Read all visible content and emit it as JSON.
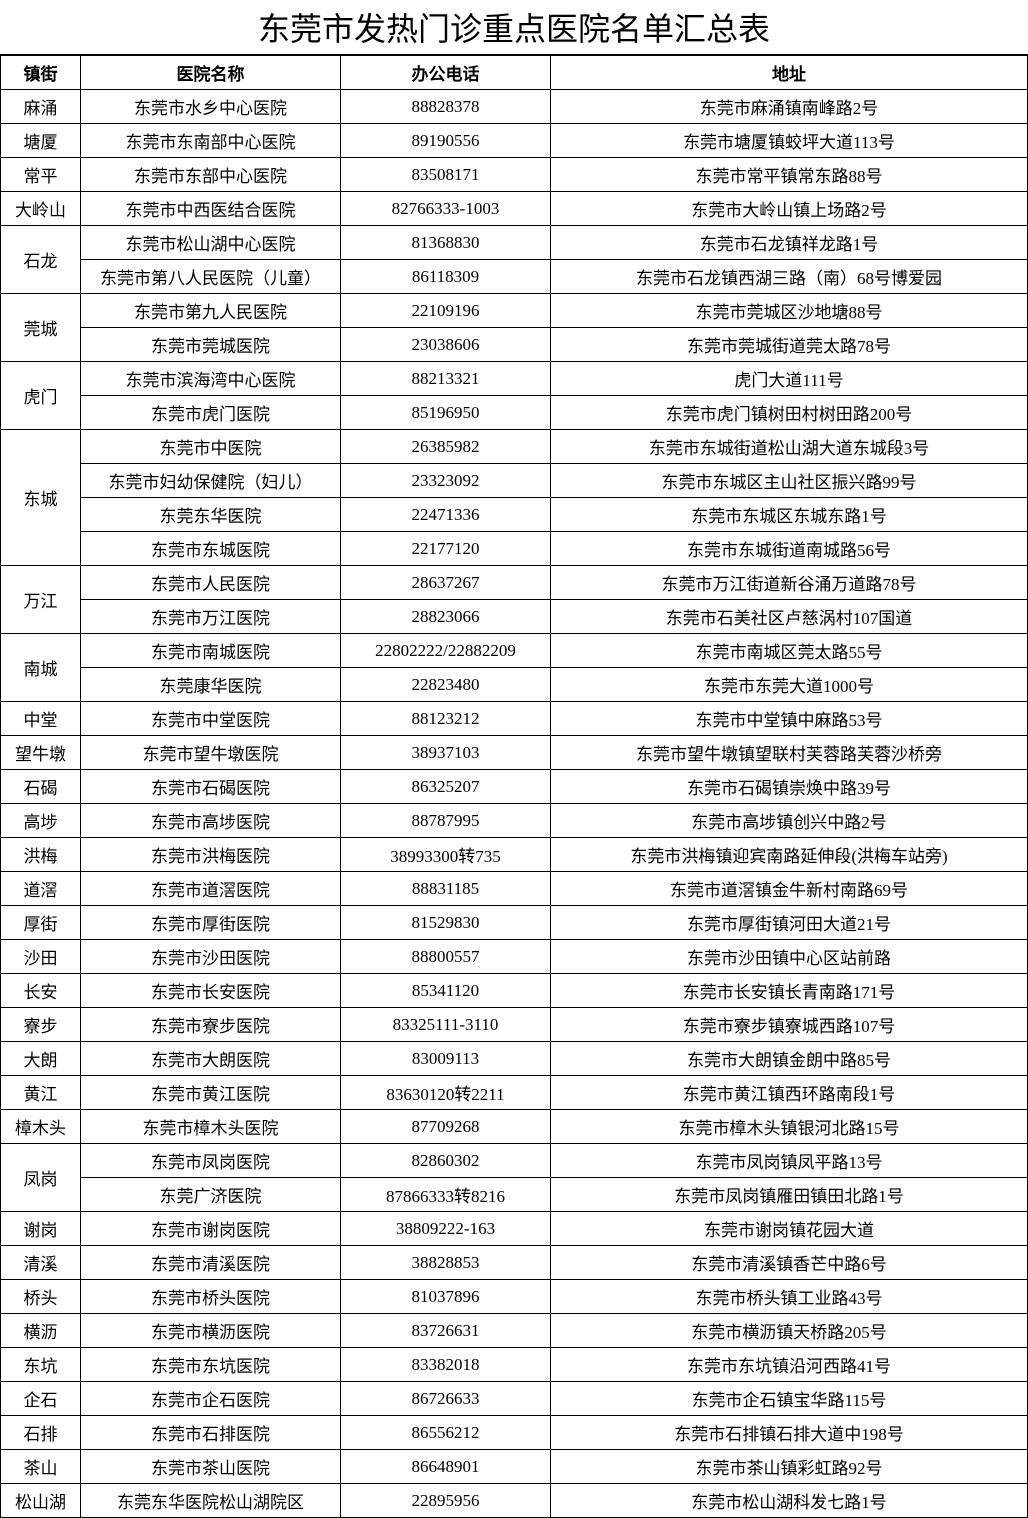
{
  "title": "东莞市发热门诊重点医院名单汇总表",
  "columns": [
    "镇街",
    "医院名称",
    "办公电话",
    "地址"
  ],
  "groups": [
    {
      "town": "麻涌",
      "rows": [
        {
          "hospital": "东莞市水乡中心医院",
          "phone": "88828378",
          "addr": "东莞市麻涌镇南峰路2号"
        }
      ]
    },
    {
      "town": "塘厦",
      "rows": [
        {
          "hospital": "东莞市东南部中心医院",
          "phone": "89190556",
          "addr": "东莞市塘厦镇蛟坪大道113号"
        }
      ]
    },
    {
      "town": "常平",
      "rows": [
        {
          "hospital": "东莞市东部中心医院",
          "phone": "83508171",
          "addr": "东莞市常平镇常东路88号"
        }
      ]
    },
    {
      "town": "大岭山",
      "rows": [
        {
          "hospital": "东莞市中西医结合医院",
          "phone": "82766333-1003",
          "addr": "东莞市大岭山镇上场路2号"
        }
      ]
    },
    {
      "town": "石龙",
      "rows": [
        {
          "hospital": "东莞市松山湖中心医院",
          "phone": "81368830",
          "addr": "东莞市石龙镇祥龙路1号"
        },
        {
          "hospital": "东莞市第八人民医院（儿童）",
          "phone": "86118309",
          "addr": "东莞市石龙镇西湖三路（南）68号博爱园"
        }
      ]
    },
    {
      "town": "莞城",
      "rows": [
        {
          "hospital": "东莞市第九人民医院",
          "phone": "22109196",
          "addr": "东莞市莞城区沙地塘88号"
        },
        {
          "hospital": "东莞市莞城医院",
          "phone": "23038606",
          "addr": "东莞市莞城街道莞太路78号"
        }
      ]
    },
    {
      "town": "虎门",
      "rows": [
        {
          "hospital": "东莞市滨海湾中心医院",
          "phone": "88213321",
          "addr": "虎门大道111号"
        },
        {
          "hospital": "东莞市虎门医院",
          "phone": "85196950",
          "addr": "东莞市虎门镇树田村树田路200号"
        }
      ]
    },
    {
      "town": "东城",
      "rows": [
        {
          "hospital": "东莞市中医院",
          "phone": "26385982",
          "addr": "东莞市东城街道松山湖大道东城段3号"
        },
        {
          "hospital": "东莞市妇幼保健院（妇儿）",
          "phone": "23323092",
          "addr": "东莞市东城区主山社区振兴路99号"
        },
        {
          "hospital": "东莞东华医院",
          "phone": "22471336",
          "addr": "东莞市东城区东城东路1号"
        },
        {
          "hospital": "东莞市东城医院",
          "phone": "22177120",
          "addr": "东莞市东城街道南城路56号"
        }
      ]
    },
    {
      "town": "万江",
      "rows": [
        {
          "hospital": "东莞市人民医院",
          "phone": "28637267",
          "addr": "东莞市万江街道新谷涌万道路78号"
        },
        {
          "hospital": "东莞市万江医院",
          "phone": "28823066",
          "addr": "东莞市石美社区卢慈涡村107国道"
        }
      ]
    },
    {
      "town": "南城",
      "rows": [
        {
          "hospital": "东莞市南城医院",
          "phone": "22802222/22882209",
          "addr": "东莞市南城区莞太路55号"
        },
        {
          "hospital": "东莞康华医院",
          "phone": "22823480",
          "addr": "东莞市东莞大道1000号"
        }
      ]
    },
    {
      "town": "中堂",
      "rows": [
        {
          "hospital": "东莞市中堂医院",
          "phone": "88123212",
          "addr": "东莞市中堂镇中麻路53号"
        }
      ]
    },
    {
      "town": "望牛墩",
      "rows": [
        {
          "hospital": "东莞市望牛墩医院",
          "phone": "38937103",
          "addr": "东莞市望牛墩镇望联村芙蓉路芙蓉沙桥旁"
        }
      ]
    },
    {
      "town": "石碣",
      "rows": [
        {
          "hospital": "东莞市石碣医院",
          "phone": "86325207",
          "addr": "东莞市石碣镇崇焕中路39号"
        }
      ]
    },
    {
      "town": "高埗",
      "rows": [
        {
          "hospital": "东莞市高埗医院",
          "phone": "88787995",
          "addr": "东莞市高埗镇创兴中路2号"
        }
      ]
    },
    {
      "town": "洪梅",
      "rows": [
        {
          "hospital": "东莞市洪梅医院",
          "phone": "38993300转735",
          "addr": "东莞市洪梅镇迎宾南路延伸段(洪梅车站旁)"
        }
      ]
    },
    {
      "town": "道滘",
      "rows": [
        {
          "hospital": "东莞市道滘医院",
          "phone": "88831185",
          "addr": "东莞市道滘镇金牛新村南路69号"
        }
      ]
    },
    {
      "town": "厚街",
      "rows": [
        {
          "hospital": "东莞市厚街医院",
          "phone": "81529830",
          "addr": "东莞市厚街镇河田大道21号"
        }
      ]
    },
    {
      "town": "沙田",
      "rows": [
        {
          "hospital": "东莞市沙田医院",
          "phone": "88800557",
          "addr": "东莞市沙田镇中心区站前路"
        }
      ]
    },
    {
      "town": "长安",
      "rows": [
        {
          "hospital": "东莞市长安医院",
          "phone": "85341120",
          "addr": "东莞市长安镇长青南路171号"
        }
      ]
    },
    {
      "town": "寮步",
      "rows": [
        {
          "hospital": "东莞市寮步医院",
          "phone": "83325111-3110",
          "addr": "东莞市寮步镇寮城西路107号"
        }
      ]
    },
    {
      "town": "大朗",
      "rows": [
        {
          "hospital": "东莞市大朗医院",
          "phone": "83009113",
          "addr": "东莞市大朗镇金朗中路85号"
        }
      ]
    },
    {
      "town": "黄江",
      "rows": [
        {
          "hospital": "东莞市黄江医院",
          "phone": "83630120转2211",
          "addr": "东莞市黄江镇西环路南段1号"
        }
      ]
    },
    {
      "town": "樟木头",
      "rows": [
        {
          "hospital": "东莞市樟木头医院",
          "phone": "87709268",
          "addr": "东莞市樟木头镇银河北路15号"
        }
      ]
    },
    {
      "town": "凤岗",
      "rows": [
        {
          "hospital": "东莞市凤岗医院",
          "phone": "82860302",
          "addr": "东莞市凤岗镇凤平路13号"
        },
        {
          "hospital": "东莞广济医院",
          "phone": "87866333转8216",
          "addr": "东莞市凤岗镇雁田镇田北路1号"
        }
      ]
    },
    {
      "town": "谢岗",
      "rows": [
        {
          "hospital": "东莞市谢岗医院",
          "phone": "38809222-163",
          "addr": "东莞市谢岗镇花园大道"
        }
      ]
    },
    {
      "town": "清溪",
      "rows": [
        {
          "hospital": "东莞市清溪医院",
          "phone": "38828853",
          "addr": "东莞市清溪镇香芒中路6号"
        }
      ]
    },
    {
      "town": "桥头",
      "rows": [
        {
          "hospital": "东莞市桥头医院",
          "phone": "81037896",
          "addr": "东莞市桥头镇工业路43号"
        }
      ]
    },
    {
      "town": "横沥",
      "rows": [
        {
          "hospital": "东莞市横沥医院",
          "phone": "83726631",
          "addr": "东莞市横沥镇天桥路205号"
        }
      ]
    },
    {
      "town": "东坑",
      "rows": [
        {
          "hospital": "东莞市东坑医院",
          "phone": "83382018",
          "addr": "东莞市东坑镇沿河西路41号"
        }
      ]
    },
    {
      "town": "企石",
      "rows": [
        {
          "hospital": "东莞市企石医院",
          "phone": "86726633",
          "addr": "东莞市企石镇宝华路115号"
        }
      ]
    },
    {
      "town": "石排",
      "rows": [
        {
          "hospital": "东莞市石排医院",
          "phone": "86556212",
          "addr": "东莞市石排镇石排大道中198号"
        }
      ]
    },
    {
      "town": "茶山",
      "rows": [
        {
          "hospital": "东莞市茶山医院",
          "phone": "86648901",
          "addr": "东莞市茶山镇彩虹路92号"
        }
      ]
    },
    {
      "town": "松山湖",
      "rows": [
        {
          "hospital": "东莞东华医院松山湖院区",
          "phone": "22895956",
          "addr": "东莞市松山湖科发七路1号"
        }
      ]
    }
  ]
}
